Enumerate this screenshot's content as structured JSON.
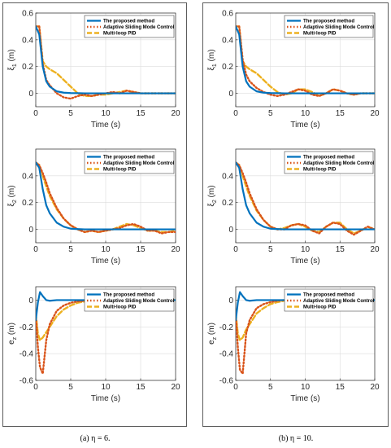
{
  "colors": {
    "proposed": "#0072BD",
    "asmc": "#D95319",
    "pid": "#EDB120",
    "grid": "#dcdcdc",
    "axis": "#262626"
  },
  "legend": [
    "The proposed method",
    "Adaptive Sliding Mode Control",
    "Multi-loop PID"
  ],
  "chart_data": [
    {
      "type": "line",
      "panel": "a",
      "caption": "(a) η = 6.",
      "ylabel_main": "ξ",
      "ylabel_sub": "1",
      "ylabel_unit": " (m)",
      "xlabel": "Time (s)",
      "xlim": [
        0,
        20
      ],
      "ylim": [
        -0.1,
        0.6
      ],
      "xticks": [
        0,
        5,
        10,
        15,
        20
      ],
      "yticks": [
        0,
        0.2,
        0.4,
        0.6
      ],
      "x": [
        0,
        0.5,
        1,
        1.5,
        2,
        3,
        4,
        5,
        6,
        7,
        8,
        9,
        10,
        11,
        12,
        13,
        14,
        15,
        16,
        17,
        18,
        19,
        20
      ],
      "series": [
        {
          "name": "The proposed method",
          "values": [
            0.5,
            0.44,
            0.2,
            0.09,
            0.05,
            0.015,
            0.005,
            0.002,
            0.001,
            0,
            0,
            0,
            0,
            0,
            0,
            0,
            0,
            0,
            0,
            0,
            0,
            0,
            0
          ]
        },
        {
          "name": "Adaptive Sliding Mode Control",
          "values": [
            0.5,
            0.5,
            0.22,
            0.1,
            0.06,
            0.0,
            -0.03,
            -0.04,
            -0.02,
            -0.01,
            -0.02,
            -0.01,
            0.0,
            0.01,
            0.0,
            0.02,
            0.01,
            0.0,
            0.0,
            0.0,
            0.0,
            0.0,
            0.0
          ]
        },
        {
          "name": "Multi-loop PID",
          "values": [
            0.5,
            0.5,
            0.24,
            0.2,
            0.18,
            0.15,
            0.1,
            0.05,
            0.0,
            -0.02,
            -0.02,
            -0.01,
            -0.01,
            0.0,
            0.01,
            0.02,
            0.01,
            0.0,
            0.0,
            0.0,
            0.0,
            0.0,
            0.0
          ]
        }
      ]
    },
    {
      "type": "line",
      "panel": "a",
      "ylabel_main": "ξ",
      "ylabel_sub": "2",
      "ylabel_unit": " (m)",
      "xlabel": "Time (s)",
      "xlim": [
        0,
        20
      ],
      "ylim": [
        -0.1,
        0.6
      ],
      "xticks": [
        0,
        5,
        10,
        15,
        20
      ],
      "yticks": [
        0,
        0.2,
        0.4
      ],
      "x": [
        0,
        0.5,
        1,
        1.5,
        2,
        3,
        4,
        5,
        6,
        7,
        8,
        9,
        10,
        11,
        12,
        13,
        14,
        15,
        16,
        17,
        18,
        19,
        20
      ],
      "series": [
        {
          "name": "The proposed method",
          "values": [
            0.5,
            0.46,
            0.3,
            0.18,
            0.12,
            0.05,
            0.02,
            0.005,
            0.002,
            0,
            0,
            0,
            0,
            0,
            0,
            0,
            0,
            0,
            0,
            0,
            0,
            0,
            0
          ]
        },
        {
          "name": "Adaptive Sliding Mode Control",
          "values": [
            0.5,
            0.48,
            0.42,
            0.35,
            0.27,
            0.16,
            0.08,
            0.03,
            0.0,
            -0.02,
            -0.01,
            -0.02,
            -0.01,
            0.0,
            0.01,
            0.03,
            0.04,
            0.02,
            -0.01,
            -0.01,
            -0.03,
            -0.02,
            -0.02
          ]
        },
        {
          "name": "Multi-loop PID",
          "values": [
            0.5,
            0.48,
            0.4,
            0.32,
            0.25,
            0.15,
            0.08,
            0.03,
            0.0,
            -0.02,
            -0.01,
            -0.02,
            -0.01,
            0.0,
            0.02,
            0.04,
            0.03,
            0.01,
            -0.01,
            -0.01,
            -0.02,
            -0.02,
            -0.01
          ]
        }
      ]
    },
    {
      "type": "line",
      "panel": "a",
      "ylabel_main": "e",
      "ylabel_sub": "z",
      "ylabel_unit": " (m)",
      "xlabel": "Time (s)",
      "xlim": [
        0,
        20
      ],
      "ylim": [
        -0.6,
        0.1
      ],
      "xticks": [
        0,
        5,
        10,
        15,
        20
      ],
      "yticks": [
        -0.6,
        -0.4,
        -0.2,
        0
      ],
      "x": [
        0,
        0.3,
        0.6,
        1,
        1.5,
        2,
        3,
        4,
        5,
        6,
        7,
        8,
        10,
        12,
        14,
        16,
        18,
        20
      ],
      "series": [
        {
          "name": "The proposed method",
          "values": [
            -0.15,
            -0.02,
            0.06,
            0.03,
            0.0,
            -0.005,
            0,
            0,
            0,
            0,
            0,
            0,
            0,
            0,
            0,
            0,
            0,
            0
          ]
        },
        {
          "name": "Adaptive Sliding Mode Control",
          "values": [
            -0.1,
            -0.35,
            -0.5,
            -0.55,
            -0.3,
            -0.18,
            -0.08,
            -0.04,
            -0.02,
            -0.01,
            -0.005,
            0,
            0,
            0,
            0,
            0,
            0,
            0
          ]
        },
        {
          "name": "Multi-loop PID",
          "values": [
            -0.1,
            -0.25,
            -0.3,
            -0.28,
            -0.24,
            -0.2,
            -0.12,
            -0.07,
            -0.04,
            -0.02,
            -0.01,
            -0.005,
            0,
            0,
            0,
            0,
            0,
            0
          ]
        }
      ]
    },
    {
      "type": "line",
      "panel": "b",
      "caption": "(b) η = 10.",
      "ylabel_main": "ξ",
      "ylabel_sub": "1",
      "ylabel_unit": " (m)",
      "xlabel": "Time (s)",
      "xlim": [
        0,
        20
      ],
      "ylim": [
        -0.1,
        0.6
      ],
      "xticks": [
        0,
        5,
        10,
        15,
        20
      ],
      "yticks": [
        0,
        0.2,
        0.4,
        0.6
      ],
      "x": [
        0,
        0.5,
        1,
        1.5,
        2,
        3,
        4,
        5,
        6,
        7,
        8,
        9,
        10,
        11,
        12,
        13,
        14,
        15,
        16,
        17,
        18,
        19,
        20
      ],
      "series": [
        {
          "name": "The proposed method",
          "values": [
            0.5,
            0.44,
            0.2,
            0.09,
            0.05,
            0.015,
            0.005,
            0.002,
            0.001,
            0,
            0,
            0,
            0,
            0,
            0,
            0,
            0,
            0,
            0,
            0,
            0,
            0,
            0
          ]
        },
        {
          "name": "Adaptive Sliding Mode Control",
          "values": [
            0.5,
            0.5,
            0.25,
            0.14,
            0.09,
            0.04,
            0.01,
            -0.01,
            -0.02,
            -0.01,
            0.01,
            0.03,
            0.02,
            -0.01,
            -0.02,
            0.0,
            0.03,
            0.02,
            0.0,
            -0.01,
            0.0,
            0.0,
            0.0
          ]
        },
        {
          "name": "Multi-loop PID",
          "values": [
            0.5,
            0.5,
            0.24,
            0.2,
            0.18,
            0.15,
            0.1,
            0.05,
            0.01,
            -0.01,
            0.0,
            0.03,
            0.03,
            0.01,
            -0.02,
            0.0,
            0.03,
            0.02,
            0.0,
            -0.01,
            0.0,
            0.0,
            0.0
          ]
        }
      ]
    },
    {
      "type": "line",
      "panel": "b",
      "ylabel_main": "ξ",
      "ylabel_sub": "2",
      "ylabel_unit": " (m)",
      "xlabel": "Time (s)",
      "xlim": [
        0,
        20
      ],
      "ylim": [
        -0.1,
        0.6
      ],
      "xticks": [
        0,
        5,
        10,
        15,
        20
      ],
      "yticks": [
        0,
        0.2,
        0.4
      ],
      "x": [
        0,
        0.5,
        1,
        1.5,
        2,
        3,
        4,
        5,
        6,
        7,
        8,
        9,
        10,
        11,
        12,
        13,
        14,
        15,
        16,
        17,
        18,
        19,
        20
      ],
      "series": [
        {
          "name": "The proposed method",
          "values": [
            0.5,
            0.46,
            0.3,
            0.18,
            0.12,
            0.05,
            0.02,
            0.005,
            0.002,
            0,
            0,
            0,
            0,
            0,
            0,
            0,
            0,
            0,
            0,
            0,
            0,
            0,
            0
          ]
        },
        {
          "name": "Adaptive Sliding Mode Control",
          "values": [
            0.5,
            0.48,
            0.42,
            0.35,
            0.27,
            0.15,
            0.07,
            0.02,
            0.0,
            0.0,
            0.03,
            0.04,
            0.03,
            -0.01,
            -0.03,
            0.02,
            0.05,
            0.04,
            -0.01,
            -0.04,
            -0.01,
            0.02,
            0.0
          ]
        },
        {
          "name": "Multi-loop PID",
          "values": [
            0.5,
            0.48,
            0.4,
            0.32,
            0.25,
            0.14,
            0.07,
            0.02,
            0.0,
            0.01,
            0.03,
            0.04,
            0.02,
            -0.01,
            -0.02,
            0.02,
            0.05,
            0.05,
            0.0,
            -0.03,
            -0.01,
            0.02,
            0.0
          ]
        }
      ]
    },
    {
      "type": "line",
      "panel": "b",
      "ylabel_main": "e",
      "ylabel_sub": "z",
      "ylabel_unit": " (m)",
      "xlabel": "Time (s)",
      "xlim": [
        0,
        20
      ],
      "ylim": [
        -0.6,
        0.1
      ],
      "xticks": [
        0,
        5,
        10,
        15,
        20
      ],
      "yticks": [
        -0.6,
        -0.4,
        -0.2,
        0
      ],
      "x": [
        0,
        0.3,
        0.6,
        1,
        1.5,
        2,
        3,
        4,
        5,
        6,
        7,
        8,
        10,
        12,
        14,
        16,
        18,
        20
      ],
      "series": [
        {
          "name": "The proposed method",
          "values": [
            -0.15,
            -0.02,
            0.06,
            0.03,
            0.0,
            -0.005,
            0,
            0,
            0,
            0,
            0,
            0,
            0,
            0,
            0,
            0,
            0,
            0
          ]
        },
        {
          "name": "Adaptive Sliding Mode Control",
          "values": [
            -0.1,
            -0.35,
            -0.52,
            -0.55,
            -0.25,
            -0.15,
            -0.06,
            -0.03,
            -0.015,
            -0.005,
            0,
            0,
            0,
            0,
            0,
            0,
            0,
            0
          ]
        },
        {
          "name": "Multi-loop PID",
          "values": [
            -0.1,
            -0.25,
            -0.3,
            -0.28,
            -0.22,
            -0.18,
            -0.1,
            -0.06,
            -0.03,
            -0.015,
            -0.005,
            0,
            0,
            0,
            0,
            0,
            0,
            0
          ]
        }
      ]
    }
  ]
}
